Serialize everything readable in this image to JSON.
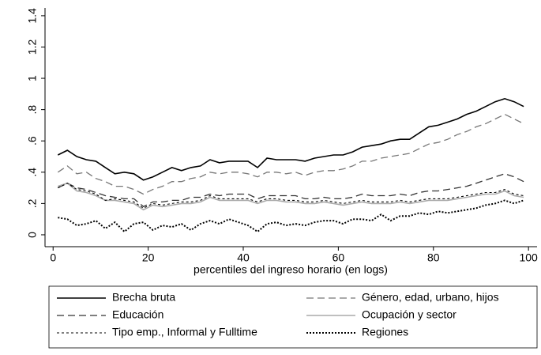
{
  "chart_data": {
    "type": "line",
    "x_label": "percentiles del ingreso horario (en logs)",
    "x": [
      1,
      3,
      5,
      7,
      9,
      11,
      13,
      15,
      17,
      19,
      21,
      23,
      25,
      27,
      29,
      31,
      33,
      35,
      37,
      39,
      41,
      43,
      45,
      47,
      49,
      51,
      53,
      55,
      57,
      59,
      61,
      63,
      65,
      67,
      69,
      71,
      73,
      75,
      77,
      79,
      81,
      83,
      85,
      87,
      89,
      91,
      93,
      95,
      97,
      99
    ],
    "series": [
      {
        "name": "Brecha bruta",
        "color": "#000000",
        "style": "solid",
        "values": [
          0.51,
          0.54,
          0.5,
          0.48,
          0.47,
          0.43,
          0.39,
          0.4,
          0.39,
          0.35,
          0.37,
          0.4,
          0.43,
          0.41,
          0.43,
          0.44,
          0.48,
          0.46,
          0.47,
          0.47,
          0.47,
          0.43,
          0.49,
          0.48,
          0.48,
          0.48,
          0.47,
          0.49,
          0.5,
          0.51,
          0.51,
          0.53,
          0.56,
          0.57,
          0.58,
          0.6,
          0.61,
          0.61,
          0.65,
          0.69,
          0.7,
          0.72,
          0.74,
          0.77,
          0.79,
          0.82,
          0.85,
          0.87,
          0.85,
          0.82
        ]
      },
      {
        "name": "Género, edad, urbano, hijos",
        "color": "#777777",
        "style": "dashed",
        "values": [
          0.4,
          0.44,
          0.39,
          0.4,
          0.36,
          0.34,
          0.31,
          0.31,
          0.29,
          0.26,
          0.29,
          0.31,
          0.34,
          0.34,
          0.36,
          0.37,
          0.4,
          0.39,
          0.4,
          0.4,
          0.39,
          0.37,
          0.4,
          0.4,
          0.39,
          0.4,
          0.38,
          0.4,
          0.41,
          0.41,
          0.42,
          0.44,
          0.47,
          0.47,
          0.49,
          0.5,
          0.51,
          0.52,
          0.55,
          0.58,
          0.59,
          0.61,
          0.64,
          0.66,
          0.69,
          0.71,
          0.74,
          0.77,
          0.74,
          0.71
        ]
      },
      {
        "name": "Educación",
        "color": "#333333",
        "style": "dashed",
        "values": [
          0.3,
          0.33,
          0.3,
          0.29,
          0.27,
          0.25,
          0.24,
          0.23,
          0.23,
          0.18,
          0.21,
          0.21,
          0.22,
          0.22,
          0.24,
          0.24,
          0.26,
          0.25,
          0.26,
          0.26,
          0.26,
          0.23,
          0.25,
          0.25,
          0.25,
          0.25,
          0.23,
          0.23,
          0.24,
          0.23,
          0.23,
          0.24,
          0.26,
          0.25,
          0.25,
          0.25,
          0.26,
          0.25,
          0.27,
          0.28,
          0.28,
          0.29,
          0.3,
          0.31,
          0.33,
          0.35,
          0.37,
          0.39,
          0.37,
          0.34
        ]
      },
      {
        "name": "Ocupación y sector",
        "color": "#aaaaaa",
        "style": "solid",
        "values": [
          0.31,
          0.33,
          0.28,
          0.27,
          0.25,
          0.22,
          0.22,
          0.21,
          0.2,
          0.16,
          0.19,
          0.18,
          0.19,
          0.2,
          0.2,
          0.21,
          0.24,
          0.22,
          0.22,
          0.22,
          0.22,
          0.2,
          0.22,
          0.22,
          0.21,
          0.21,
          0.2,
          0.2,
          0.21,
          0.2,
          0.19,
          0.2,
          0.21,
          0.2,
          0.2,
          0.2,
          0.21,
          0.2,
          0.21,
          0.22,
          0.22,
          0.22,
          0.23,
          0.24,
          0.25,
          0.26,
          0.26,
          0.28,
          0.25,
          0.24
        ]
      },
      {
        "name": "Tipo emp., Informal y Fulltime",
        "color": "#000000",
        "style": "short-dash",
        "values": [
          0.3,
          0.33,
          0.29,
          0.28,
          0.26,
          0.22,
          0.23,
          0.22,
          0.21,
          0.17,
          0.2,
          0.19,
          0.2,
          0.21,
          0.21,
          0.22,
          0.25,
          0.23,
          0.23,
          0.23,
          0.23,
          0.21,
          0.23,
          0.23,
          0.22,
          0.22,
          0.21,
          0.21,
          0.22,
          0.21,
          0.2,
          0.21,
          0.22,
          0.21,
          0.21,
          0.21,
          0.22,
          0.21,
          0.22,
          0.23,
          0.23,
          0.23,
          0.24,
          0.25,
          0.26,
          0.27,
          0.27,
          0.29,
          0.26,
          0.25
        ]
      },
      {
        "name": "Regiones",
        "color": "#000000",
        "style": "dotted",
        "values": [
          0.11,
          0.1,
          0.06,
          0.07,
          0.09,
          0.04,
          0.08,
          0.02,
          0.07,
          0.08,
          0.03,
          0.06,
          0.05,
          0.07,
          0.03,
          0.07,
          0.09,
          0.07,
          0.1,
          0.08,
          0.06,
          0.02,
          0.07,
          0.08,
          0.06,
          0.07,
          0.06,
          0.08,
          0.09,
          0.09,
          0.07,
          0.1,
          0.1,
          0.09,
          0.13,
          0.09,
          0.12,
          0.12,
          0.14,
          0.13,
          0.15,
          0.14,
          0.15,
          0.16,
          0.17,
          0.19,
          0.2,
          0.22,
          0.2,
          0.22
        ]
      }
    ],
    "xlim": [
      -1.7,
      101.8
    ],
    "xticks": [
      0,
      20,
      40,
      60,
      80,
      100
    ],
    "ylim": [
      -0.076,
      1.45
    ],
    "yticks": [
      0,
      {
        "value": 0.2,
        "label": ".2"
      },
      {
        "value": 0.4,
        "label": ".4"
      },
      {
        "value": 0.6,
        "label": ".6"
      },
      {
        "value": 0.8,
        "label": ".8"
      },
      1,
      {
        "value": 1.2,
        "label": "1.2"
      },
      {
        "value": 1.4,
        "label": "1.4"
      }
    ],
    "grid": false,
    "legend": "bottom"
  }
}
